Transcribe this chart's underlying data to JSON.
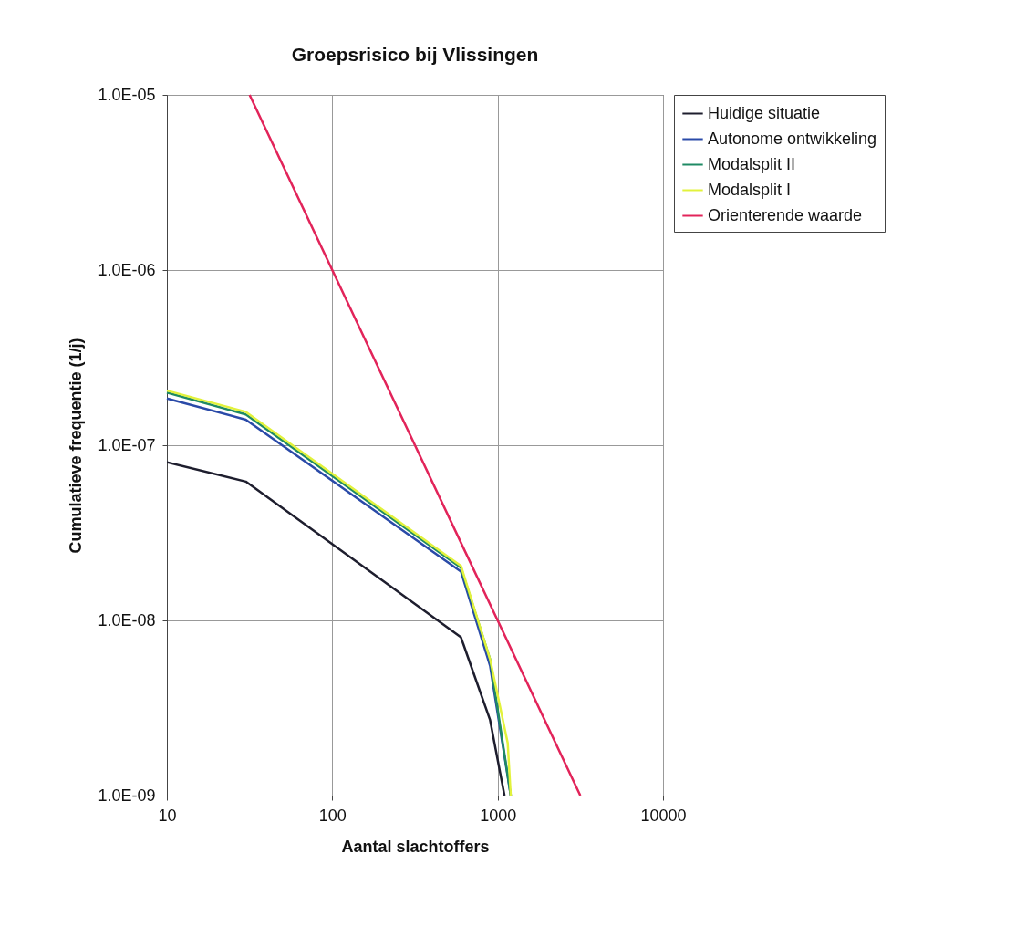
{
  "chart_data": {
    "type": "line",
    "title": "Groepsrisico bij Vlissingen",
    "xlabel": "Aantal slachtoffers",
    "ylabel": "Cumulatieve frequentie (1/j)",
    "log": "xy",
    "grid": true,
    "legend": "top right",
    "xlim": [
      10,
      10000
    ],
    "xticks": [
      10,
      100,
      1000,
      10000
    ],
    "ylim": [
      1e-09,
      1e-05
    ],
    "yticks": [
      {
        "value": 1e-09,
        "label": "1.0E-09"
      },
      {
        "value": 1e-08,
        "label": "1.0E-08"
      },
      {
        "value": 1e-07,
        "label": "1.0E-07"
      },
      {
        "value": 1e-06,
        "label": "1.0E-06"
      },
      {
        "value": 1e-05,
        "label": "1.0E-05"
      }
    ],
    "series": [
      {
        "name": "Huidige situatie",
        "color": "#1e1e2e",
        "x": [
          10,
          30,
          600,
          900,
          1100
        ],
        "values": [
          8e-08,
          6.2e-08,
          8e-09,
          2.7e-09,
          1e-09
        ]
      },
      {
        "name": "Autonome ontwikkeling",
        "color": "#2a4aa8",
        "x": [
          10,
          30,
          600,
          900,
          1200
        ],
        "values": [
          1.85e-07,
          1.4e-07,
          1.9e-08,
          5.5e-09,
          1e-09
        ]
      },
      {
        "name": "Modalsplit II",
        "color": "#1f8a64",
        "x": [
          10,
          30,
          600,
          900,
          1200
        ],
        "values": [
          2e-07,
          1.5e-07,
          2e-08,
          6e-09,
          1e-09
        ]
      },
      {
        "name": "Modalsplit I",
        "color": "#e2f23c",
        "x": [
          10,
          30,
          600,
          900,
          1150,
          1200
        ],
        "values": [
          2.05e-07,
          1.55e-07,
          2.05e-08,
          6e-09,
          2e-09,
          1e-09
        ]
      },
      {
        "name": "Orienterende waarde",
        "color": "#e2245a",
        "x": [
          31.62,
          100,
          1000,
          3162
        ],
        "values": [
          1e-05,
          1e-06,
          1e-08,
          1e-09
        ]
      }
    ]
  }
}
